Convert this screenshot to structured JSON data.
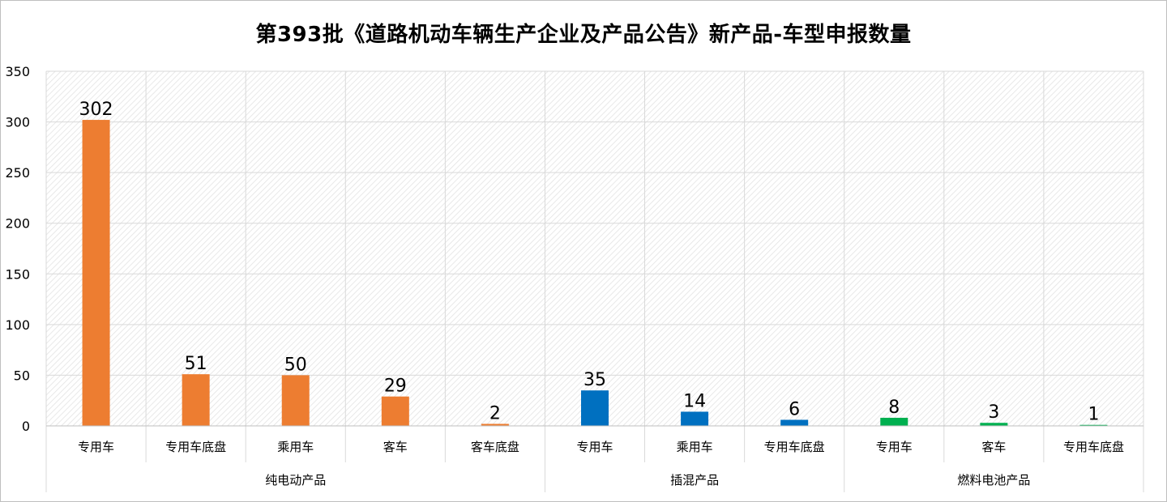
{
  "chart_data": {
    "type": "bar",
    "title": "第393批《道路机动车辆生产企业及产品公告》新产品-车型申报数量",
    "ylim": [
      0,
      350
    ],
    "yticks": [
      0,
      50,
      100,
      150,
      200,
      250,
      300,
      350
    ],
    "grid": true,
    "legend": "none",
    "groups": [
      {
        "name": "纯电动产品",
        "color": "#ED7D31",
        "categories": [
          "专用车",
          "专用车底盘",
          "乘用车",
          "客车",
          "客车底盘"
        ],
        "values": [
          302,
          51,
          50,
          29,
          2
        ]
      },
      {
        "name": "插混产品",
        "color": "#0070C0",
        "categories": [
          "专用车",
          "乘用车",
          "专用车底盘"
        ],
        "values": [
          35,
          14,
          6
        ]
      },
      {
        "name": "燃料电池产品",
        "color": "#00B050",
        "categories": [
          "专用车",
          "客车",
          "专用车底盘"
        ],
        "values": [
          8,
          3,
          1
        ]
      }
    ]
  }
}
